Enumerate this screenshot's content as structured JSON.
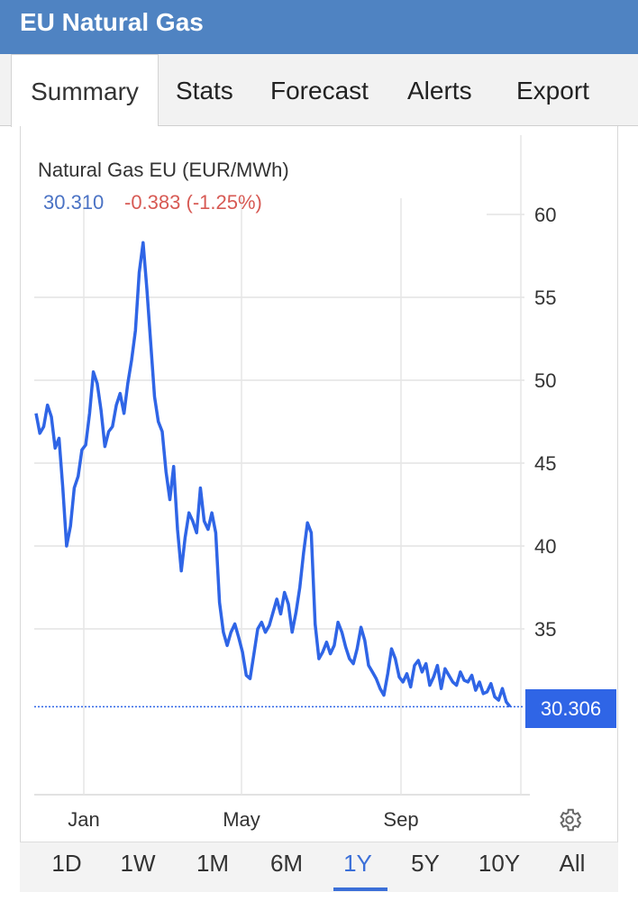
{
  "header": {
    "title": "EU Natural Gas"
  },
  "tabs": [
    {
      "label": "Summary",
      "active": true
    },
    {
      "label": "Stats"
    },
    {
      "label": "Forecast"
    },
    {
      "label": "Alerts"
    },
    {
      "label": "Export"
    }
  ],
  "chart_header": {
    "title": "Natural Gas EU (EUR/MWh)",
    "price": "30.310",
    "change": "-0.383 (-1.25%)"
  },
  "last_value_label": "30.306",
  "settings_icon": "gear-icon",
  "ranges": [
    "1D",
    "1W",
    "1M",
    "6M",
    "1Y",
    "5Y",
    "10Y",
    "All"
  ],
  "active_range": "1Y",
  "colors": {
    "header": "#4f83c2",
    "line": "#2f65e6",
    "price": "#4a72c4",
    "change": "#d75a54"
  },
  "chart_data": {
    "type": "line",
    "title": "Natural Gas EU (EUR/MWh)",
    "xlabel": "",
    "ylabel": "",
    "x_ticks": [
      "Jan",
      "May",
      "Sep"
    ],
    "y_ticks": [
      35,
      40,
      45,
      50,
      55,
      60
    ],
    "ylim": [
      30.3,
      60
    ],
    "last_value": 30.306,
    "series": [
      {
        "values": [
          48.0,
          46.8,
          47.2,
          48.5,
          47.8,
          45.9,
          46.5,
          43.5,
          40.0,
          41.2,
          43.5,
          44.2,
          45.8,
          46.1,
          48.0,
          50.5,
          49.8,
          48.2,
          46.0,
          46.9,
          47.2,
          48.5,
          49.2,
          48.0,
          49.8,
          51.2,
          53.0,
          56.5,
          58.3,
          55.5,
          52.2,
          49.0,
          47.5,
          46.9,
          44.5,
          42.8,
          44.8,
          41.0,
          38.5,
          40.5,
          42.0,
          41.5,
          40.8,
          43.5,
          41.5,
          41.0,
          42.0,
          40.8,
          36.6,
          34.8,
          34.0,
          34.8,
          35.3,
          34.5,
          33.6,
          32.2,
          32.0,
          33.5,
          35.0,
          35.4,
          34.8,
          35.2,
          36.0,
          36.8,
          35.9,
          37.2,
          36.5,
          34.8,
          36.0,
          37.5,
          39.6,
          41.4,
          40.8,
          35.3,
          33.2,
          33.6,
          34.2,
          33.5,
          34.0,
          35.4,
          34.8,
          33.9,
          33.2,
          32.9,
          33.8,
          35.1,
          34.3,
          32.8,
          32.4,
          32.0,
          31.4,
          31.0,
          32.3,
          33.8,
          33.2,
          32.1,
          31.8,
          32.3,
          31.5,
          32.8,
          33.1,
          32.4,
          32.9,
          31.6,
          32.1,
          32.8,
          31.4,
          32.6,
          32.2,
          31.8,
          31.6,
          32.4,
          31.9,
          31.8,
          32.2,
          31.3,
          31.8,
          31.1,
          31.2,
          31.7,
          30.9,
          30.7,
          31.4,
          30.6,
          30.31
        ]
      }
    ]
  },
  "_unused": "x positions are evenly spaced across the plot; values estimated from gridlines"
}
